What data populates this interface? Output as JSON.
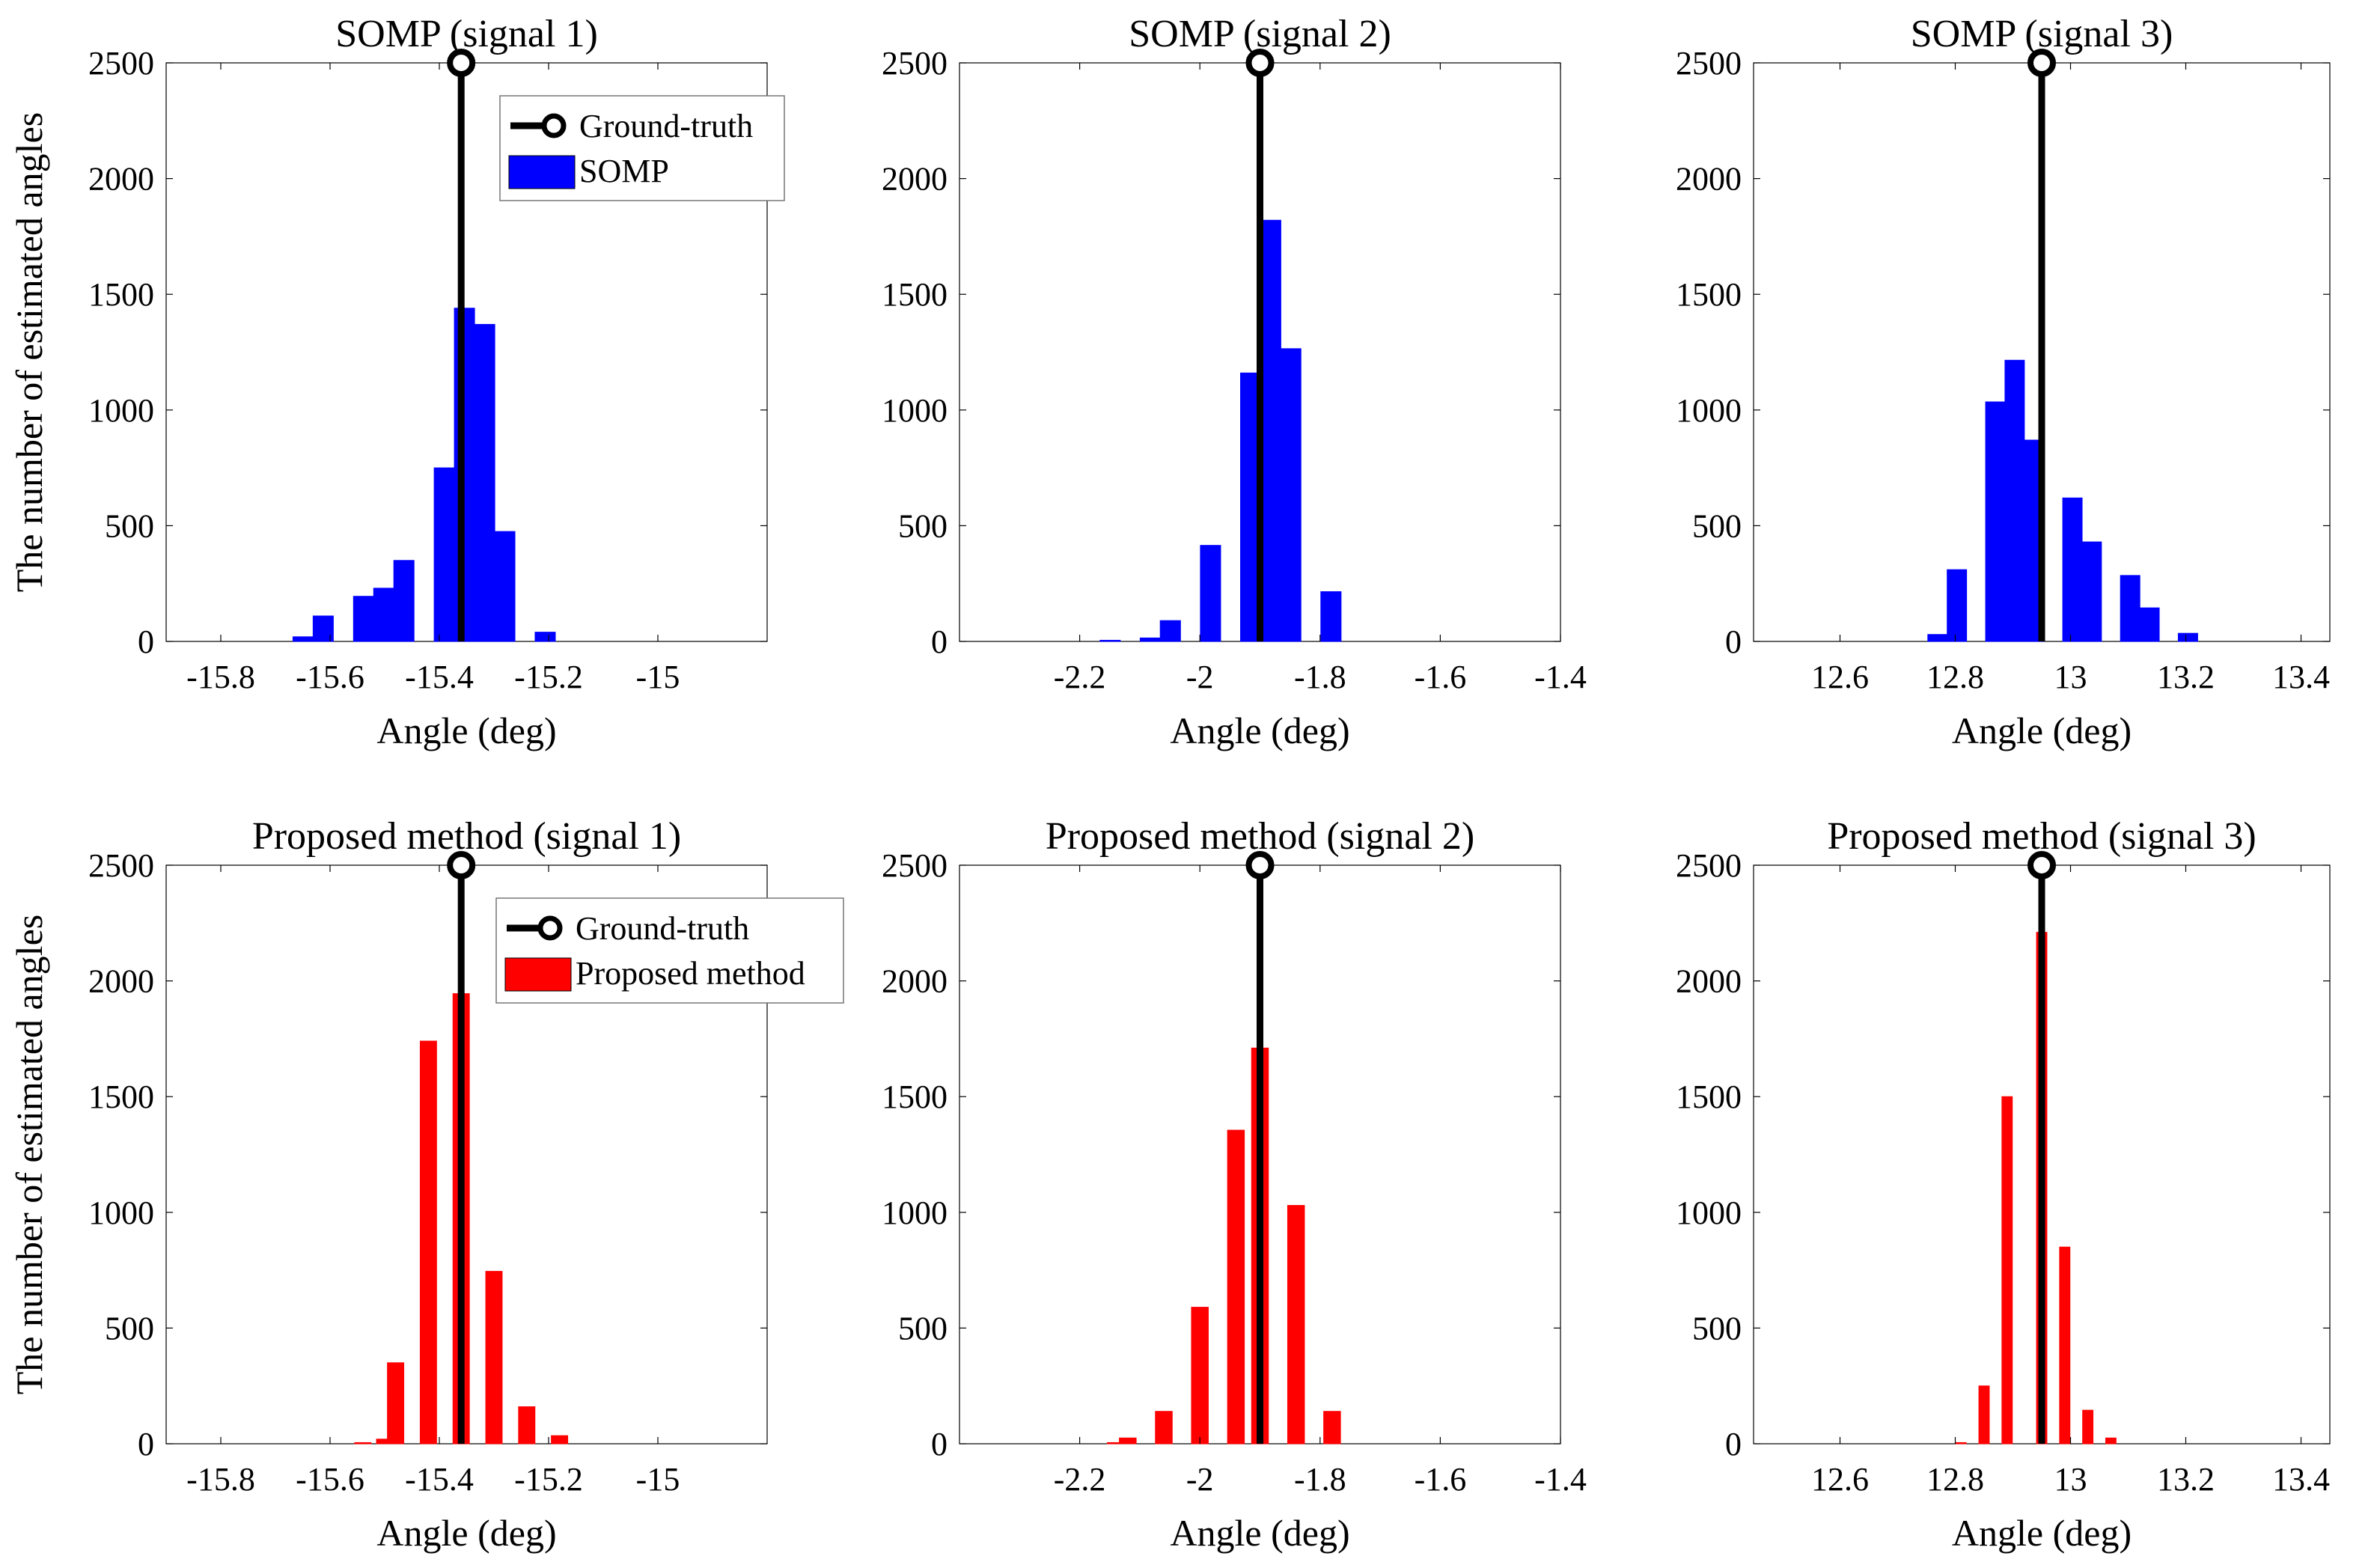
{
  "colors": {
    "somp": "#0000ff",
    "proposed": "#ff0000",
    "ground_truth": "#000000"
  },
  "chart_data": [
    {
      "type": "bar",
      "title": "SOMP (signal 1)",
      "xlabel": "Angle (deg)",
      "ylabel": "The number of estimated angles",
      "xlim": [
        -15.9,
        -14.8
      ],
      "ylim": [
        0,
        2500
      ],
      "xticks": [
        -15.8,
        -15.6,
        -15.4,
        -15.2,
        -15
      ],
      "xtick_labels": [
        "-15.8",
        "-15.6",
        "-15.4",
        "-15.2",
        "-15"
      ],
      "yticks": [
        0,
        500,
        1000,
        1500,
        2000,
        2500
      ],
      "ytick_labels": [
        "0",
        "500",
        "1000",
        "1500",
        "2000",
        "2500"
      ],
      "bar_width": 0.037,
      "series": [
        {
          "name": "SOMP",
          "color": "#0000ff",
          "x": [
            -15.6494,
            -15.6125,
            -15.5386,
            -15.5017,
            -15.4648,
            -15.3909,
            -15.354,
            -15.317,
            -15.2801,
            -15.2062
          ],
          "values": [
            20,
            110,
            195,
            230,
            350,
            750,
            1440,
            1370,
            475,
            40
          ]
        }
      ],
      "ground_truth": {
        "name": "Ground-truth",
        "x": -15.36,
        "value": 2500
      },
      "legend": {
        "show": true,
        "position": "top-right",
        "entries": [
          "Ground-truth",
          "SOMP"
        ]
      }
    },
    {
      "type": "bar",
      "title": "SOMP (signal 2)",
      "xlabel": "Angle (deg)",
      "ylabel": "",
      "xlim": [
        -2.4,
        -1.4
      ],
      "ylim": [
        0,
        2500
      ],
      "xticks": [
        -2.2,
        -2,
        -1.8,
        -1.6,
        -1.4
      ],
      "xtick_labels": [
        "-2.2",
        "-2",
        "-1.8",
        "-1.6",
        "-1.4"
      ],
      "yticks": [
        0,
        500,
        1000,
        1500,
        2000,
        2500
      ],
      "ytick_labels": [
        "0",
        "500",
        "1000",
        "1500",
        "2000",
        "2500"
      ],
      "bar_width": 0.0337,
      "series": [
        {
          "name": "SOMP",
          "color": "#0000ff",
          "x": [
            -2.1493,
            -2.0825,
            -2.0491,
            -1.9823,
            -1.9155,
            -1.8821,
            -1.8487,
            -1.7819
          ],
          "values": [
            5,
            15,
            90,
            415,
            1160,
            1820,
            1265,
            215
          ]
        }
      ],
      "ground_truth": {
        "name": "Ground-truth",
        "x": -1.9,
        "value": 2500
      }
    },
    {
      "type": "bar",
      "title": "SOMP (signal 3)",
      "xlabel": "Angle (deg)",
      "ylabel": "",
      "xlim": [
        12.45,
        13.45
      ],
      "ylim": [
        0,
        2500
      ],
      "xticks": [
        12.6,
        12.8,
        13,
        13.2,
        13.4
      ],
      "xtick_labels": [
        "12.6",
        "12.8",
        "13",
        "13.2",
        "13.4"
      ],
      "yticks": [
        0,
        500,
        1000,
        1500,
        2000,
        2500
      ],
      "ytick_labels": [
        "0",
        "500",
        "1000",
        "1500",
        "2000",
        "2500"
      ],
      "bar_width": 0.0337,
      "series": [
        {
          "name": "SOMP",
          "color": "#0000ff",
          "x": [
            12.7692,
            12.8028,
            12.8695,
            12.9031,
            12.9364,
            13.0033,
            13.0368,
            13.1035,
            13.1371,
            13.2038
          ],
          "values": [
            30,
            310,
            1035,
            1215,
            870,
            620,
            430,
            285,
            145,
            35
          ]
        }
      ],
      "ground_truth": {
        "name": "Ground-truth",
        "x": 12.95,
        "value": 2500
      }
    },
    {
      "type": "bar",
      "title": "Proposed method (signal 1)",
      "xlabel": "Angle (deg)",
      "ylabel": "The number of estimated angles",
      "xlim": [
        -15.9,
        -14.8
      ],
      "ylim": [
        0,
        2500
      ],
      "xticks": [
        -15.8,
        -15.6,
        -15.4,
        -15.2,
        -15
      ],
      "xtick_labels": [
        "-15.8",
        "-15.6",
        "-15.4",
        "-15.2",
        "-15"
      ],
      "yticks": [
        0,
        500,
        1000,
        1500,
        2000,
        2500
      ],
      "ytick_labels": [
        "0",
        "500",
        "1000",
        "1500",
        "2000",
        "2500"
      ],
      "bar_width": 0.03,
      "series": [
        {
          "name": "Proposed method",
          "color": "#ff0000",
          "x": [
            -15.54,
            -15.5,
            -15.48,
            -15.42,
            -15.36,
            -15.3,
            -15.24,
            -15.18
          ],
          "values": [
            5,
            20,
            350,
            1740,
            1945,
            745,
            160,
            35
          ]
        }
      ],
      "ground_truth": {
        "name": "Ground-truth",
        "x": -15.36,
        "value": 2500
      },
      "legend": {
        "show": true,
        "position": "top-right",
        "entries": [
          "Ground-truth",
          "Proposed method"
        ]
      }
    },
    {
      "type": "bar",
      "title": "Proposed method (signal 2)",
      "xlabel": "Angle (deg)",
      "ylabel": "",
      "xlim": [
        -2.4,
        -1.4
      ],
      "ylim": [
        0,
        2500
      ],
      "xticks": [
        -2.2,
        -2,
        -1.8,
        -1.6,
        -1.4
      ],
      "xtick_labels": [
        "-2.2",
        "-2",
        "-1.8",
        "-1.6",
        "-1.4"
      ],
      "yticks": [
        0,
        500,
        1000,
        1500,
        2000,
        2500
      ],
      "ytick_labels": [
        "0",
        "500",
        "1000",
        "1500",
        "2000",
        "2500"
      ],
      "bar_width": 0.028,
      "series": [
        {
          "name": "Proposed method",
          "color": "#ff0000",
          "x": [
            -2.14,
            -2.12,
            -2.06,
            -2.0,
            -1.94,
            -1.9,
            -1.84,
            -1.78
          ],
          "values": [
            5,
            25,
            140,
            590,
            1355,
            1710,
            1030,
            140
          ]
        }
      ],
      "ground_truth": {
        "name": "Ground-truth",
        "x": -1.9,
        "value": 2500
      }
    },
    {
      "type": "bar",
      "title": "Proposed method (signal 3)",
      "xlabel": "Angle (deg)",
      "ylabel": "",
      "xlim": [
        12.45,
        13.45
      ],
      "ylim": [
        0,
        2500
      ],
      "xticks": [
        12.6,
        12.8,
        13,
        13.2,
        13.4
      ],
      "xtick_labels": [
        "12.6",
        "12.8",
        "13",
        "13.2",
        "13.4"
      ],
      "yticks": [
        0,
        500,
        1000,
        1500,
        2000,
        2500
      ],
      "ytick_labels": [
        "0",
        "500",
        "1000",
        "1500",
        "2000",
        "2500"
      ],
      "bar_width": 0.018,
      "series": [
        {
          "name": "Proposed method",
          "color": "#ff0000",
          "x": [
            12.81,
            12.85,
            12.89,
            12.95,
            12.99,
            13.03,
            13.07
          ],
          "values": [
            5,
            250,
            1500,
            2210,
            850,
            145,
            25
          ]
        }
      ],
      "ground_truth": {
        "name": "Ground-truth",
        "x": 12.95,
        "value": 2500
      }
    }
  ]
}
